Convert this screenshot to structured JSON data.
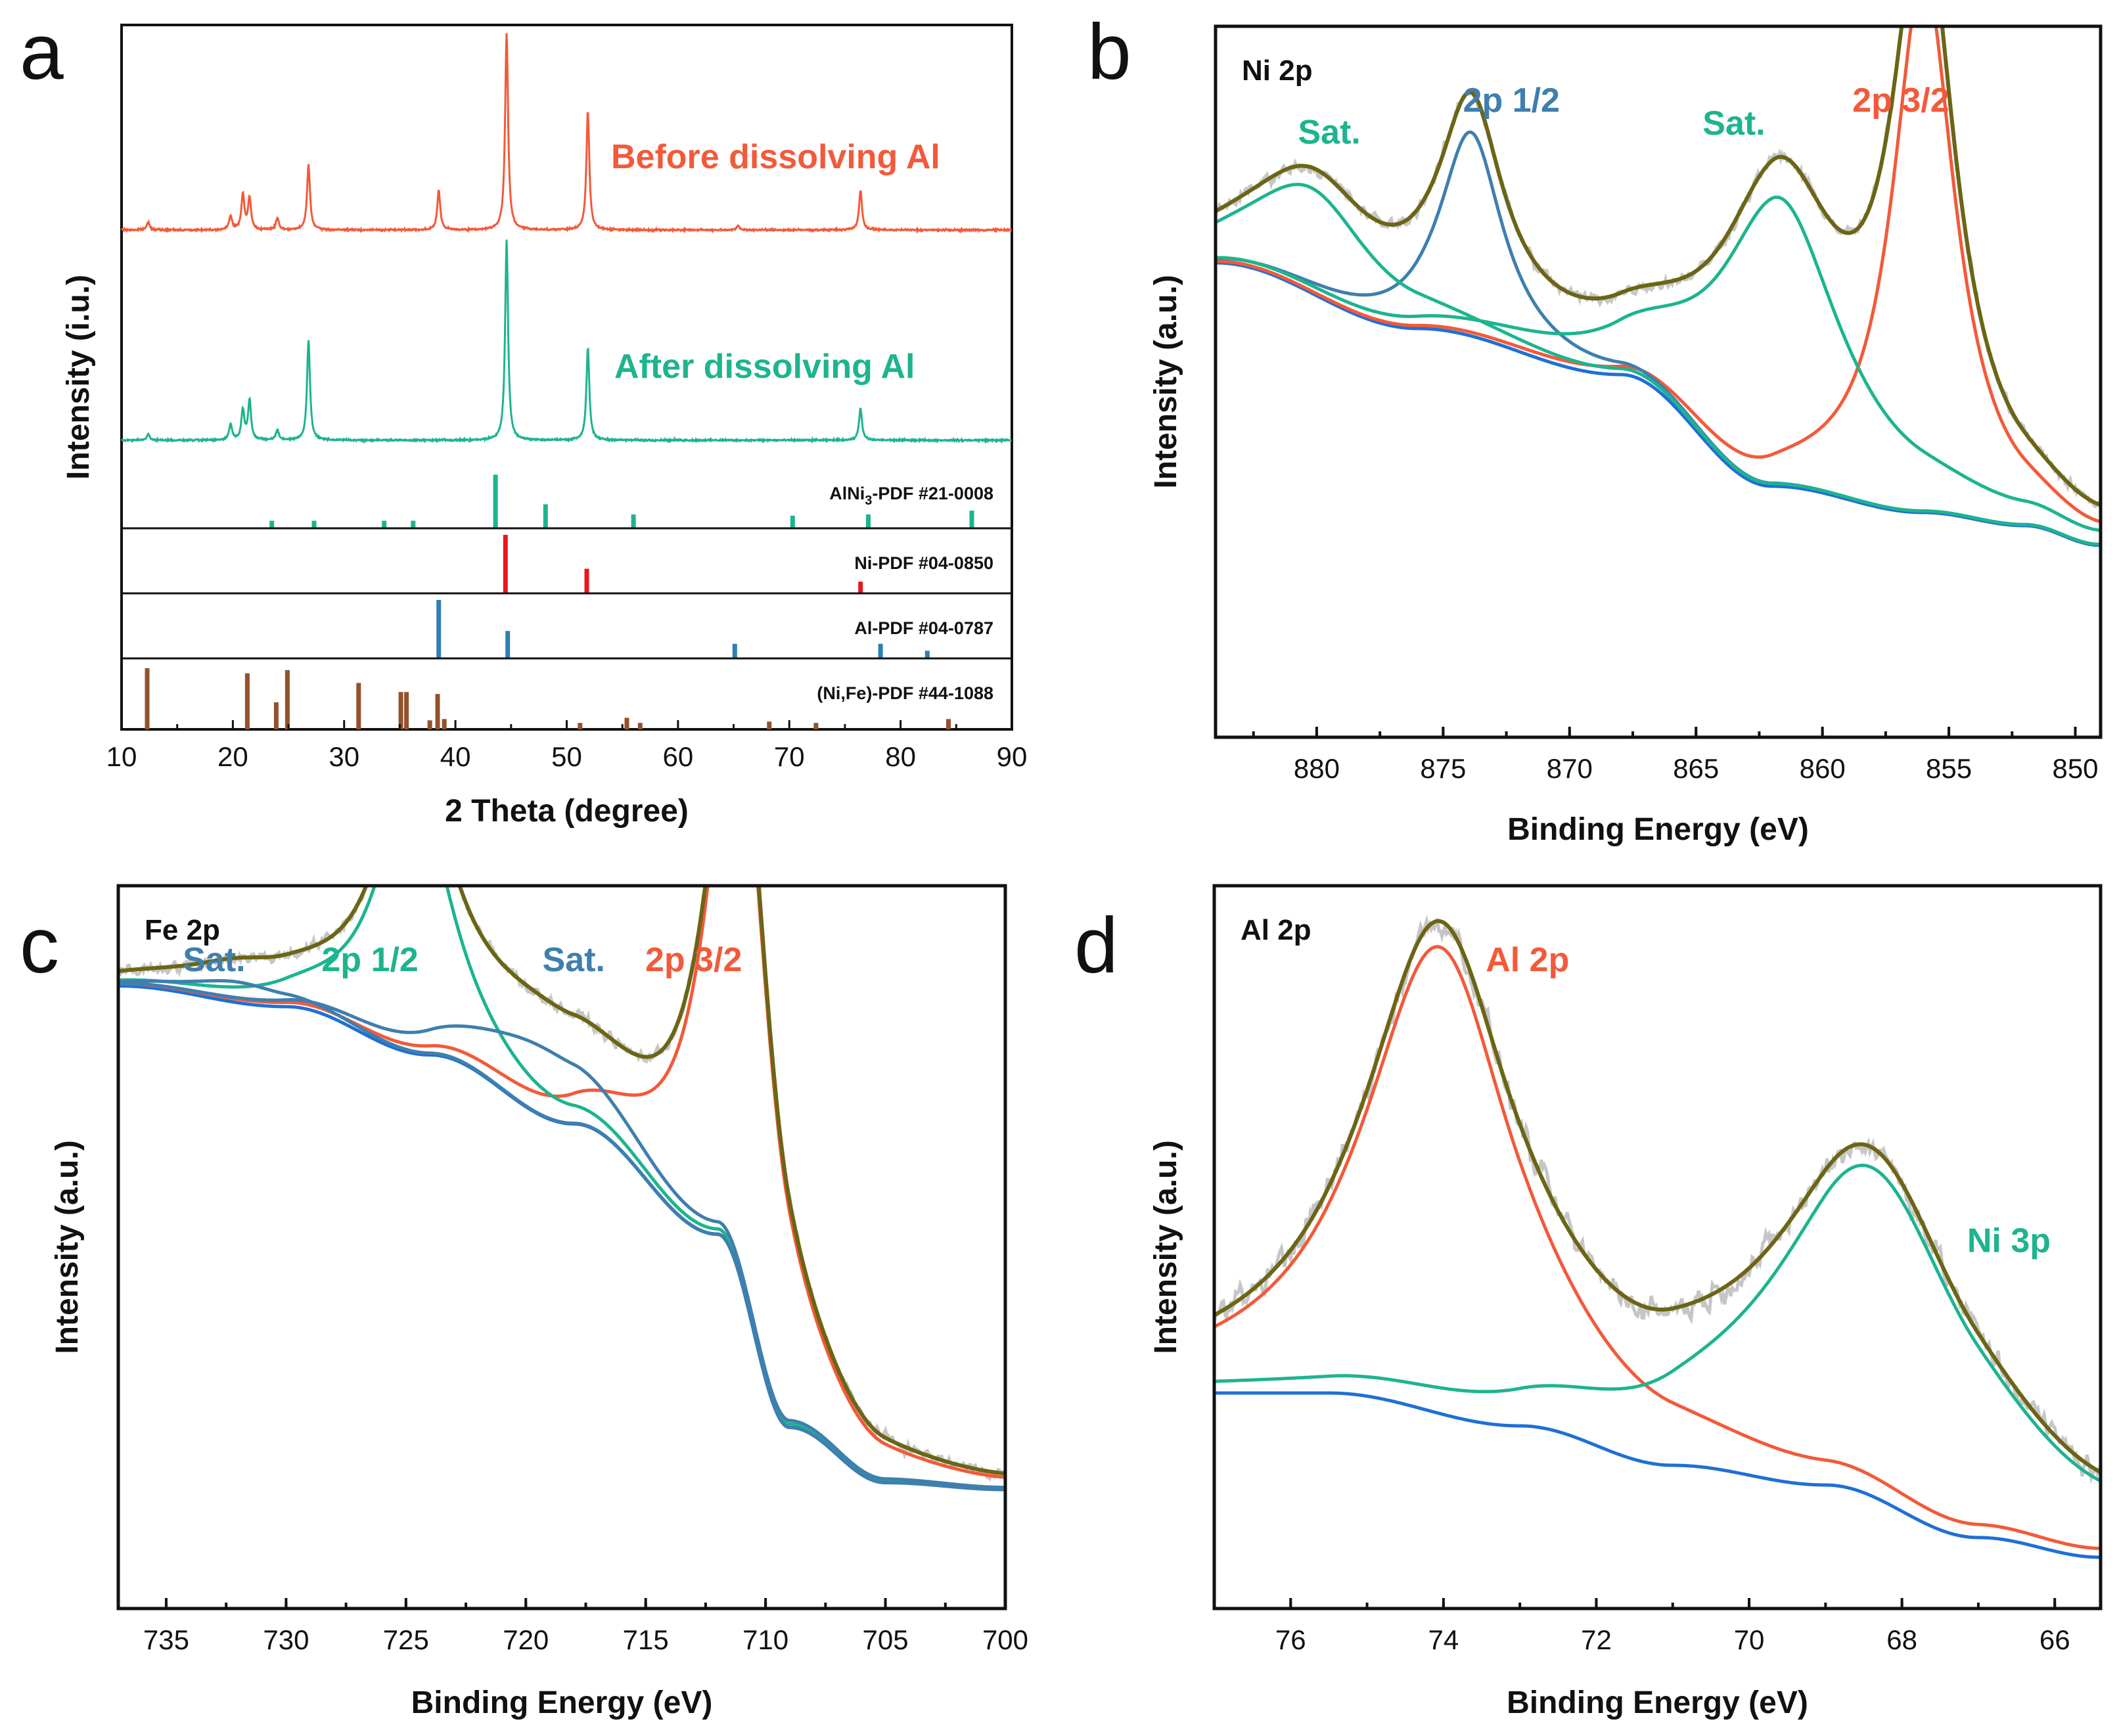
{
  "colors": {
    "red": "#f25a3a",
    "teal": "#1db48f",
    "steel": "#3e7fae",
    "blue": "#1f6fd6",
    "olive": "#6b6515",
    "raw": "#c6c6c6",
    "ni_ref": "#e8171d",
    "al_ref": "#2e7fb4",
    "nife_ref": "#94512c",
    "alni3_ref": "#1db48f"
  },
  "chart_data": [
    {
      "id": "a",
      "type": "line",
      "panel_label": "a",
      "xlabel": "2 Theta (degree)",
      "ylabel": "Intensity (i.u.)",
      "xlim": [
        10,
        90
      ],
      "xticks": [
        "10",
        "20",
        "30",
        "40",
        "50",
        "60",
        "70",
        "80",
        "90"
      ],
      "series": [
        {
          "name": "Before dissolving Al",
          "color": "#f25a3a",
          "peaks": [
            [
              12.4,
              0.04
            ],
            [
              19.8,
              0.07
            ],
            [
              20.9,
              0.18
            ],
            [
              21.5,
              0.16
            ],
            [
              24.0,
              0.06
            ],
            [
              26.8,
              0.33
            ],
            [
              38.5,
              0.2
            ],
            [
              44.6,
              1.0
            ],
            [
              51.9,
              0.6
            ],
            [
              65.4,
              0.02
            ],
            [
              76.4,
              0.2
            ]
          ]
        },
        {
          "name": "After dissolving Al",
          "color": "#1db48f",
          "peaks": [
            [
              12.4,
              0.03
            ],
            [
              19.8,
              0.08
            ],
            [
              20.9,
              0.15
            ],
            [
              21.5,
              0.2
            ],
            [
              24.0,
              0.05
            ],
            [
              26.8,
              0.5
            ],
            [
              44.6,
              1.0
            ],
            [
              51.9,
              0.46
            ],
            [
              76.4,
              0.16
            ]
          ]
        }
      ],
      "references": [
        {
          "label_main": "AlNi",
          "label_sub": "3",
          "label_tail": "-PDF #21-0008",
          "color": "#1db48f",
          "sticks": [
            [
              23.5,
              0.12
            ],
            [
              27.3,
              0.12
            ],
            [
              33.6,
              0.12
            ],
            [
              36.2,
              0.12
            ],
            [
              43.6,
              0.85
            ],
            [
              48.1,
              0.38
            ],
            [
              56.0,
              0.22
            ],
            [
              70.3,
              0.2
            ],
            [
              77.1,
              0.22
            ],
            [
              86.4,
              0.28
            ]
          ]
        },
        {
          "label_main": "Ni-PDF #04-0850",
          "color": "#e8171d",
          "sticks": [
            [
              44.5,
              1.0
            ],
            [
              51.8,
              0.42
            ],
            [
              76.4,
              0.2
            ]
          ]
        },
        {
          "label_main": "Al-PDF #04-0787",
          "color": "#2e7fb4",
          "sticks": [
            [
              38.5,
              1.0
            ],
            [
              44.7,
              0.47
            ],
            [
              65.1,
              0.25
            ],
            [
              78.2,
              0.25
            ],
            [
              82.4,
              0.13
            ]
          ]
        },
        {
          "label_main": "(Ni,Fe)-PDF #44-1088",
          "color": "#94512c",
          "sticks": [
            [
              12.3,
              0.95
            ],
            [
              21.3,
              0.87
            ],
            [
              23.9,
              0.42
            ],
            [
              24.9,
              0.92
            ],
            [
              31.3,
              0.72
            ],
            [
              35.1,
              0.58
            ],
            [
              35.6,
              0.58
            ],
            [
              37.7,
              0.14
            ],
            [
              38.4,
              0.55
            ],
            [
              39.0,
              0.16
            ],
            [
              51.2,
              0.1
            ],
            [
              55.4,
              0.18
            ],
            [
              56.6,
              0.1
            ],
            [
              68.2,
              0.12
            ],
            [
              72.4,
              0.1
            ],
            [
              84.3,
              0.16
            ]
          ]
        }
      ]
    },
    {
      "id": "b",
      "type": "line",
      "panel_label": "b",
      "title": "Ni 2p",
      "xlabel": "Binding Energy (eV)",
      "ylabel": "Intensity (a.u.)",
      "xlim": [
        884,
        849
      ],
      "xticks": [
        "880",
        "875",
        "870",
        "865",
        "860",
        "855",
        "850"
      ],
      "annotations": [
        {
          "text": "2p 3/2",
          "x": 856.9,
          "color": "#f25a3a"
        },
        {
          "text": "2p 1/2",
          "x": 872.3,
          "color": "#3e7fae"
        },
        {
          "text": "Sat.",
          "x": 879.5,
          "color": "#1db48f"
        },
        {
          "text": "Sat.",
          "x": 863.5,
          "color": "#1db48f"
        }
      ],
      "components": [
        {
          "name": "2p 3/2",
          "center": 856.0,
          "fwhm": 3.0,
          "height": 0.82,
          "color": "#f25a3a"
        },
        {
          "name": "2p 1/2",
          "center": 873.9,
          "fwhm": 3.0,
          "height": 0.31,
          "color": "#3e7fae"
        },
        {
          "name": "Sat.",
          "center": 861.8,
          "fwhm": 6.0,
          "height": 0.44,
          "color": "#1db48f"
        },
        {
          "name": "Sat.",
          "center": 880.2,
          "fwhm": 6.0,
          "height": 0.16,
          "color": "#1db48f"
        }
      ],
      "background": [
        [
          884,
          0.6
        ],
        [
          876,
          0.5
        ],
        [
          868,
          0.43
        ],
        [
          862,
          0.26
        ],
        [
          856,
          0.22
        ],
        [
          852,
          0.2
        ],
        [
          849,
          0.17
        ]
      ]
    },
    {
      "id": "c",
      "type": "line",
      "panel_label": "c",
      "title": "Fe 2p",
      "xlabel": "Binding Energy (eV)",
      "ylabel": "Intensity (a.u.)",
      "xlim": [
        737,
        700
      ],
      "xticks": [
        "735",
        "730",
        "725",
        "720",
        "715",
        "710",
        "705",
        "700"
      ],
      "annotations": [
        {
          "text": "2p 3/2",
          "x": 713.0,
          "color": "#f25a3a"
        },
        {
          "text": "2p 1/2",
          "x": 726.5,
          "color": "#1db48f"
        },
        {
          "text": "Sat.",
          "x": 733.0,
          "color": "#3e7fae"
        },
        {
          "text": "Sat.",
          "x": 718.0,
          "color": "#3e7fae"
        }
      ],
      "components": [
        {
          "name": "2p 3/2",
          "center": 711.1,
          "fwhm": 3.3,
          "height": 0.82,
          "color": "#f25a3a"
        },
        {
          "name": "2p 1/2",
          "center": 724.7,
          "fwhm": 3.6,
          "height": 0.4,
          "color": "#1db48f"
        },
        {
          "name": "Sat.",
          "center": 719.4,
          "fwhm": 7.0,
          "height": 0.1,
          "color": "#3e7fae"
        },
        {
          "name": "Sat.",
          "center": 732.0,
          "fwhm": 5.0,
          "height": 0.03,
          "color": "#3e7fae"
        }
      ],
      "background": [
        [
          737,
          0.79
        ],
        [
          730,
          0.76
        ],
        [
          724,
          0.69
        ],
        [
          718,
          0.59
        ],
        [
          712,
          0.43
        ],
        [
          709,
          0.15
        ],
        [
          705,
          0.07
        ],
        [
          700,
          0.06
        ]
      ]
    },
    {
      "id": "d",
      "type": "line",
      "panel_label": "d",
      "title": "Al 2p",
      "xlabel": "Binding Energy (eV)",
      "ylabel": "Intensity (a.u.)",
      "xlim": [
        77,
        65.4
      ],
      "xticks": [
        "76",
        "74",
        "72",
        "70",
        "68",
        "66"
      ],
      "annotations": [
        {
          "text": "Al 2p",
          "x": 72.9,
          "color": "#f25a3a"
        },
        {
          "text": "Ni 3p",
          "x": 66.6,
          "color": "#1db48f"
        }
      ],
      "components": [
        {
          "name": "Al 2p",
          "center": 74.05,
          "fwhm": 2.4,
          "height": 0.71,
          "color": "#f25a3a"
        },
        {
          "name": "Ni 3p",
          "center": 68.4,
          "fwhm": 3.3,
          "height": 0.5,
          "color": "#1db48f"
        }
      ],
      "background": [
        [
          77,
          0.31
        ],
        [
          75.5,
          0.31
        ],
        [
          73,
          0.26
        ],
        [
          71,
          0.2
        ],
        [
          69,
          0.17
        ],
        [
          67,
          0.09
        ],
        [
          65.4,
          0.06
        ]
      ]
    }
  ]
}
